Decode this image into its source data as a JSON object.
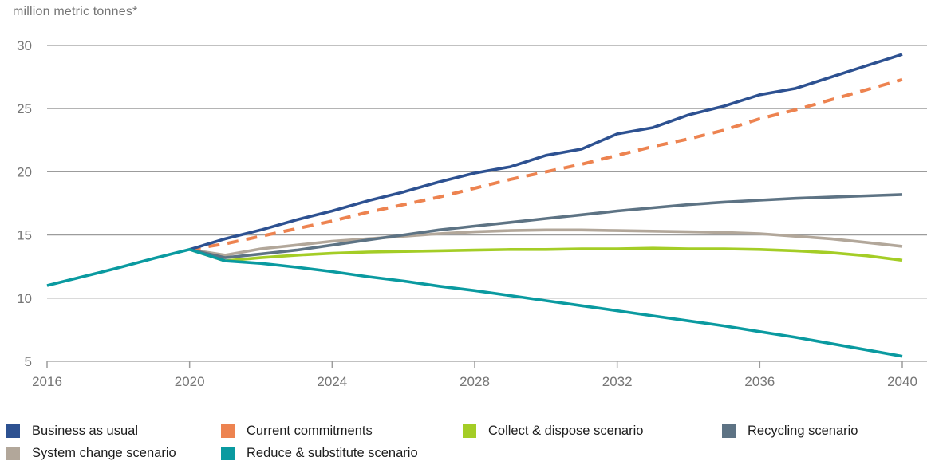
{
  "chart_data": {
    "type": "line",
    "title": "million metric tonnes*",
    "xlabel": "",
    "ylabel": "million metric tonnes*",
    "xlim": [
      2016,
      2040
    ],
    "ylim": [
      5,
      30
    ],
    "x_ticks": [
      2016,
      2020,
      2024,
      2028,
      2032,
      2036,
      2040
    ],
    "y_ticks": [
      30,
      25,
      20,
      15,
      10,
      5
    ],
    "grid": true,
    "legend_position": "bottom",
    "x": [
      2016,
      2017,
      2018,
      2019,
      2020,
      2021,
      2022,
      2023,
      2024,
      2025,
      2026,
      2027,
      2028,
      2029,
      2030,
      2031,
      2032,
      2033,
      2034,
      2035,
      2036,
      2037,
      2038,
      2039,
      2040
    ],
    "series": [
      {
        "name": "Business as usual",
        "color": "#2d5191",
        "dash": false,
        "values": [
          null,
          null,
          null,
          null,
          13.85,
          14.7,
          15.4,
          16.2,
          16.9,
          17.7,
          18.4,
          19.2,
          19.9,
          20.4,
          21.3,
          21.8,
          23.0,
          23.5,
          24.5,
          25.2,
          26.1,
          26.6,
          27.5,
          28.4,
          29.3
        ]
      },
      {
        "name": "Current commitments",
        "color": "#ed8350",
        "dash": true,
        "values": [
          null,
          null,
          null,
          null,
          13.85,
          14.3,
          14.9,
          15.5,
          16.1,
          16.8,
          17.4,
          18.0,
          18.7,
          19.4,
          20.0,
          20.6,
          21.3,
          22.0,
          22.6,
          23.3,
          24.2,
          24.9,
          25.7,
          26.5,
          27.3
        ]
      },
      {
        "name": "Collect & dispose scenario",
        "color": "#a4cd26",
        "dash": false,
        "values": [
          null,
          null,
          null,
          null,
          13.85,
          12.95,
          13.2,
          13.4,
          13.55,
          13.65,
          13.7,
          13.75,
          13.8,
          13.85,
          13.85,
          13.9,
          13.9,
          13.95,
          13.9,
          13.9,
          13.85,
          13.75,
          13.6,
          13.35,
          13.0
        ]
      },
      {
        "name": "Recycling scenario",
        "color": "#5d7384",
        "dash": false,
        "values": [
          null,
          null,
          null,
          null,
          13.85,
          13.2,
          13.5,
          13.8,
          14.2,
          14.6,
          15.0,
          15.4,
          15.7,
          16.0,
          16.3,
          16.6,
          16.9,
          17.15,
          17.4,
          17.6,
          17.75,
          17.9,
          18.0,
          18.1,
          18.2
        ]
      },
      {
        "name": "System change scenario",
        "color": "#b2a79a",
        "dash": false,
        "values": [
          null,
          null,
          null,
          null,
          13.85,
          13.4,
          13.9,
          14.2,
          14.5,
          14.7,
          14.9,
          15.1,
          15.25,
          15.35,
          15.4,
          15.4,
          15.35,
          15.3,
          15.25,
          15.2,
          15.1,
          14.9,
          14.7,
          14.4,
          14.1
        ]
      },
      {
        "name": "Reduce & substitute scenario",
        "color": "#0a9aa0",
        "dash": false,
        "values": [
          11.0,
          11.7,
          12.4,
          13.15,
          13.85,
          12.95,
          12.75,
          12.45,
          12.1,
          11.7,
          11.35,
          10.95,
          10.6,
          10.2,
          9.8,
          9.4,
          9.0,
          8.6,
          8.2,
          7.8,
          7.35,
          6.9,
          6.4,
          5.9,
          5.4
        ]
      }
    ],
    "style": {
      "grid_color": "#9c9c9c",
      "tick_label_color": "#757575",
      "legend_text_color": "#1e1e1e",
      "background": "#ffffff"
    }
  }
}
